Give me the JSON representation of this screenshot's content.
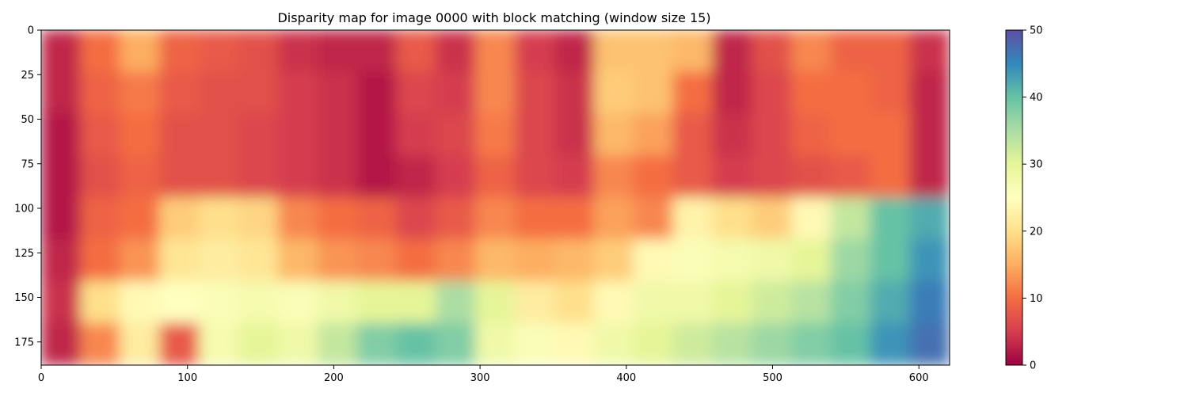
{
  "chart_data": {
    "type": "heatmap",
    "title": "Disparity map for image 0000 with block matching (window size 15)",
    "xlim": [
      0,
      621
    ],
    "ylim": [
      188,
      0
    ],
    "x_ticks": [
      0,
      100,
      200,
      300,
      400,
      500,
      600
    ],
    "y_ticks": [
      0,
      25,
      50,
      75,
      100,
      125,
      150,
      175
    ],
    "colormap": "Spectral",
    "colorbar": {
      "min": 0,
      "max": 50,
      "ticks": [
        0,
        10,
        20,
        30,
        40,
        50
      ]
    },
    "grid": false,
    "cells_cols": 23,
    "cells_rows": 8,
    "values": [
      [
        3,
        10,
        15,
        9,
        8,
        7,
        4,
        3,
        3,
        8,
        4,
        12,
        5,
        3,
        17,
        17,
        16,
        3,
        7,
        12,
        9,
        9,
        4
      ],
      [
        3,
        9,
        11,
        8,
        7,
        7,
        5,
        4,
        2,
        6,
        5,
        12,
        6,
        4,
        18,
        17,
        10,
        3,
        6,
        10,
        10,
        9,
        3
      ],
      [
        2,
        8,
        10,
        7,
        7,
        6,
        5,
        4,
        2,
        5,
        6,
        11,
        6,
        4,
        16,
        14,
        8,
        4,
        6,
        9,
        10,
        10,
        3
      ],
      [
        2,
        7,
        9,
        7,
        7,
        6,
        5,
        4,
        2,
        3,
        5,
        9,
        6,
        5,
        12,
        10,
        8,
        5,
        6,
        7,
        8,
        10,
        3
      ],
      [
        2,
        9,
        10,
        18,
        20,
        19,
        12,
        10,
        9,
        6,
        8,
        12,
        10,
        10,
        14,
        12,
        23,
        20,
        18,
        24,
        33,
        40,
        42
      ],
      [
        3,
        10,
        13,
        21,
        22,
        21,
        16,
        13,
        12,
        10,
        12,
        16,
        15,
        16,
        18,
        24,
        26,
        27,
        28,
        30,
        36,
        40,
        44
      ],
      [
        4,
        20,
        24,
        25,
        26,
        27,
        26,
        28,
        30,
        30,
        35,
        30,
        22,
        20,
        24,
        28,
        28,
        30,
        32,
        34,
        38,
        42,
        46
      ],
      [
        3,
        12,
        22,
        8,
        27,
        30,
        28,
        33,
        38,
        40,
        38,
        28,
        26,
        24,
        28,
        30,
        32,
        34,
        36,
        38,
        40,
        44,
        47
      ]
    ]
  }
}
